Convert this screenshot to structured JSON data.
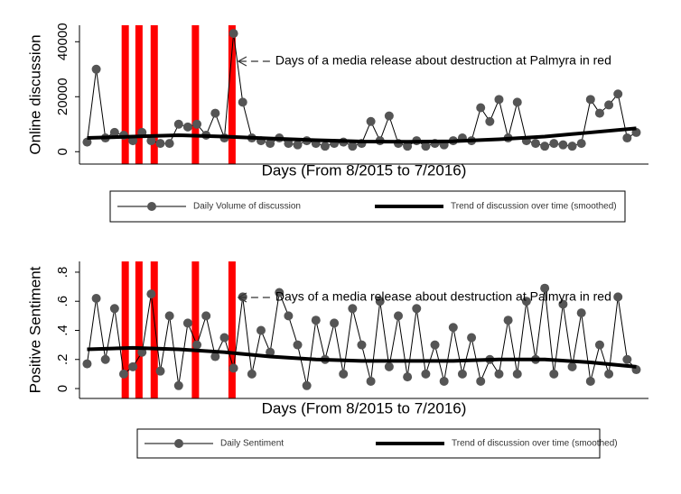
{
  "chart_data": [
    {
      "type": "line",
      "ylabel": "Online discussion",
      "xlabel": "Days (From 8/2015 to 7/2016)",
      "annotation": "Days of a media release about destruction at Palmyra in red",
      "highlights": [
        25,
        34,
        44,
        71,
        95
      ],
      "highlight_color": "#ff0000",
      "xlim": [
        -5,
        368
      ],
      "ylim": [
        -4500,
        46000
      ],
      "yticks": [
        0,
        20000,
        40000
      ],
      "series": [
        {
          "name": "Daily Volume of discussion",
          "color": "#555555",
          "markers": true,
          "x": [
            0,
            6,
            12,
            18,
            24,
            30,
            36,
            42,
            48,
            54,
            60,
            66,
            72,
            78,
            84,
            90,
            96,
            102,
            108,
            114,
            120,
            126,
            132,
            138,
            144,
            150,
            156,
            162,
            168,
            174,
            180,
            186,
            192,
            198,
            204,
            210,
            216,
            222,
            228,
            234,
            240,
            246,
            252,
            258,
            264,
            270,
            276,
            282,
            288,
            294,
            300,
            306,
            312,
            318,
            324,
            330,
            336,
            342,
            348,
            354,
            360
          ],
          "values": [
            3500,
            30000,
            5000,
            7000,
            6000,
            4000,
            7000,
            4000,
            3000,
            3000,
            10000,
            9000,
            10000,
            6000,
            14000,
            5000,
            43000,
            18000,
            5000,
            4000,
            3000,
            5000,
            3000,
            2500,
            4000,
            3000,
            2000,
            3000,
            3500,
            2000,
            3000,
            11000,
            4000,
            13000,
            3000,
            2000,
            4000,
            2000,
            3000,
            2500,
            4000,
            5000,
            4000,
            16000,
            11000,
            19000,
            5000,
            18000,
            4000,
            3000,
            2000,
            3000,
            2500,
            2000,
            3000,
            19000,
            14000,
            17000,
            21000,
            5000,
            7000
          ]
        },
        {
          "name": "Trend of discussion over time (smoothed)",
          "color": "#000000",
          "markers": false,
          "x": [
            0,
            30,
            60,
            90,
            120,
            150,
            180,
            210,
            240,
            270,
            300,
            330,
            360
          ],
          "values": [
            5000,
            5500,
            6000,
            5500,
            4800,
            4200,
            3700,
            3600,
            3800,
            4500,
            5500,
            7000,
            8500
          ]
        }
      ]
    },
    {
      "type": "line",
      "ylabel": "Positive Sentiment",
      "xlabel": "Days (From 8/2015 to 7/2016)",
      "annotation": "Days of a media release about destruction at Palmyra in red",
      "highlights": [
        25,
        34,
        44,
        71,
        95
      ],
      "highlight_color": "#ff0000",
      "xlim": [
        -5,
        368
      ],
      "ylim": [
        -0.068,
        0.874
      ],
      "yticks": [
        0,
        {
          "value": 0.2,
          "label": ".2"
        },
        {
          "value": 0.4,
          "label": ".4"
        },
        {
          "value": 0.6,
          "label": ".6"
        },
        {
          "value": 0.8,
          "label": ".8"
        }
      ],
      "series": [
        {
          "name": "Daily Sentiment",
          "color": "#555555",
          "markers": true,
          "x": [
            0,
            6,
            12,
            18,
            24,
            30,
            36,
            42,
            48,
            54,
            60,
            66,
            72,
            78,
            84,
            90,
            96,
            102,
            108,
            114,
            120,
            126,
            132,
            138,
            144,
            150,
            156,
            162,
            168,
            174,
            180,
            186,
            192,
            198,
            204,
            210,
            216,
            222,
            228,
            234,
            240,
            246,
            252,
            258,
            264,
            270,
            276,
            282,
            288,
            294,
            300,
            306,
            312,
            318,
            324,
            330,
            336,
            342,
            348,
            354,
            360
          ],
          "values": [
            0.17,
            0.62,
            0.2,
            0.55,
            0.1,
            0.15,
            0.25,
            0.65,
            0.12,
            0.5,
            0.02,
            0.45,
            0.3,
            0.5,
            0.22,
            0.35,
            0.14,
            0.63,
            0.1,
            0.4,
            0.25,
            0.66,
            0.5,
            0.3,
            0.02,
            0.47,
            0.2,
            0.45,
            0.1,
            0.55,
            0.3,
            0.05,
            0.6,
            0.15,
            0.5,
            0.08,
            0.55,
            0.1,
            0.3,
            0.05,
            0.42,
            0.1,
            0.35,
            0.05,
            0.2,
            0.1,
            0.47,
            0.1,
            0.6,
            0.2,
            0.69,
            0.1,
            0.58,
            0.15,
            0.52,
            0.05,
            0.3,
            0.1,
            0.63,
            0.2,
            0.13
          ]
        },
        {
          "name": "Trend of discussion over time (smoothed)",
          "color": "#000000",
          "markers": false,
          "x": [
            0,
            30,
            60,
            90,
            120,
            150,
            180,
            210,
            240,
            270,
            300,
            330,
            360
          ],
          "values": [
            0.27,
            0.28,
            0.27,
            0.25,
            0.22,
            0.2,
            0.19,
            0.19,
            0.19,
            0.2,
            0.2,
            0.18,
            0.15
          ]
        }
      ]
    }
  ]
}
